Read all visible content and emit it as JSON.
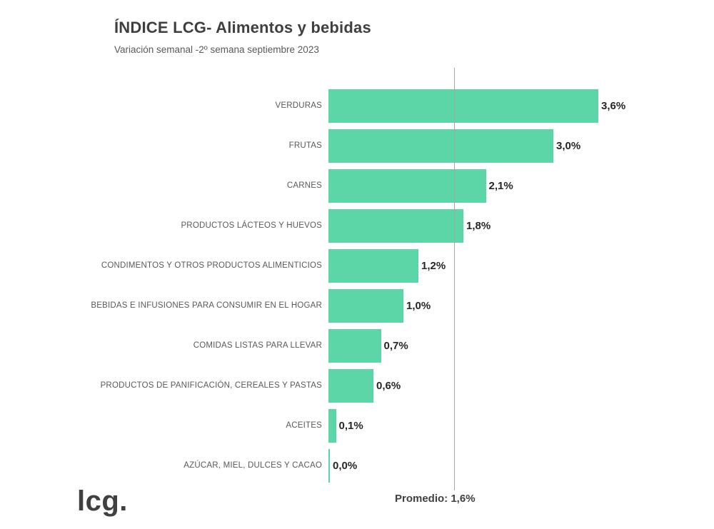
{
  "title": "ÍNDICE LCG- Alimentos y bebidas",
  "subtitle": "Variación semanal -2º semana septiembre 2023",
  "logo": "lcg.",
  "average_label": "Promedio: 1,6%",
  "colors": {
    "bar": "#5CD6A6",
    "average_line": "#a6a6a6",
    "value_text": "#262626",
    "category_text": "#595959"
  },
  "chart_data": {
    "type": "bar",
    "orientation": "horizontal",
    "title": "ÍNDICE LCG- Alimentos y bebidas",
    "subtitle": "Variación semanal -2º semana septiembre 2023",
    "categories": [
      "VERDURAS",
      "FRUTAS",
      "CARNES",
      "PRODUCTOS LÁCTEOS Y HUEVOS",
      "CONDIMENTOS Y OTROS PRODUCTOS ALIMENTICIOS",
      "BEBIDAS E INFUSIONES PARA CONSUMIR EN EL HOGAR",
      "COMIDAS LISTAS PARA LLEVAR",
      "PRODUCTOS DE PANIFICACIÓN, CEREALES Y PASTAS",
      "ACEITES",
      "AZÚCAR, MIEL, DULCES Y CACAO"
    ],
    "values": [
      3.6,
      3.0,
      2.1,
      1.8,
      1.2,
      1.0,
      0.7,
      0.6,
      0.1,
      0.0
    ],
    "value_labels": [
      "3,6%",
      "3,0%",
      "2,1%",
      "1,8%",
      "1,2%",
      "1,0%",
      "0,7%",
      "0,6%",
      "0,1%",
      "0,0%"
    ],
    "average": 1.6,
    "xlim": [
      0,
      4.0
    ],
    "xlabel": "",
    "ylabel": "",
    "grid": false,
    "legend": "none",
    "annotations": [
      "Promedio: 1,6%"
    ]
  }
}
